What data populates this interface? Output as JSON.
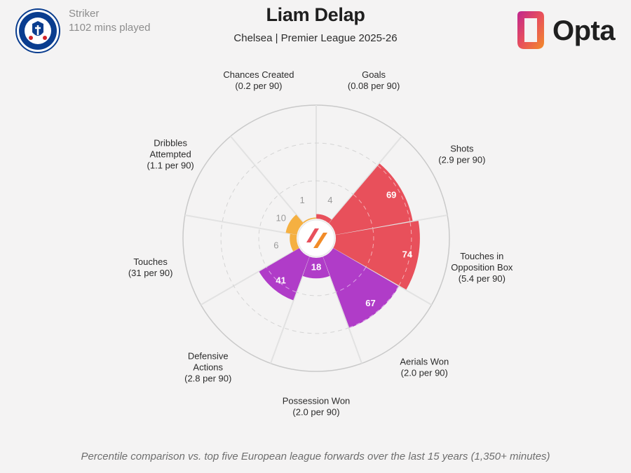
{
  "header": {
    "position": "Striker",
    "minutes": "1102 mins played",
    "title": "Liam Delap",
    "subtitle": "Chelsea | Premier League 2025-26",
    "brand": "Opta",
    "club_crest_text": "CHELSEA FOOTBALL CLUB"
  },
  "footnote": "Percentile comparison vs. top five European league forwards over the last 15 years (1,350+ minutes)",
  "colors": {
    "attacking": "#e8505b",
    "possession": "#f5b041",
    "defending": "#b03cc8",
    "ring": "#c9c9c9",
    "background": "#f4f3f3"
  },
  "chart_data": {
    "type": "polar-bar",
    "title": "Liam Delap",
    "subtitle": "Chelsea | Premier League 2025-26",
    "rlim": [
      0,
      100
    ],
    "categories": [
      {
        "name": "Goals",
        "per90": "(0.08 per 90)",
        "percentile": 4,
        "group": "attacking"
      },
      {
        "name": "Shots",
        "per90": "(2.9 per 90)",
        "percentile": 69,
        "group": "attacking"
      },
      {
        "name": "Touches in Opposition Box",
        "label_lines": [
          "Touches in",
          "Opposition Box"
        ],
        "per90": "(5.4 per 90)",
        "percentile": 74,
        "group": "attacking"
      },
      {
        "name": "Aerials Won",
        "per90": "(2.0 per 90)",
        "percentile": 67,
        "group": "defending"
      },
      {
        "name": "Possession Won",
        "per90": "(2.0 per 90)",
        "percentile": 18,
        "group": "defending"
      },
      {
        "name": "Defensive Actions",
        "label_lines": [
          "Defensive",
          "Actions"
        ],
        "per90": "(2.8 per 90)",
        "percentile": 41,
        "group": "defending"
      },
      {
        "name": "Touches",
        "per90": "(31 per 90)",
        "percentile": 6,
        "group": "possession"
      },
      {
        "name": "Dribbles Attempted",
        "label_lines": [
          "Dribbles",
          "Attempted"
        ],
        "per90": "(1.1 per 90)",
        "percentile": 10,
        "group": "possession"
      },
      {
        "name": "Chances Created",
        "per90": "(0.2 per 90)",
        "percentile": 1,
        "group": "possession"
      }
    ],
    "footnote": "Percentile comparison vs. top five European league forwards over the last 15 years (1,350+ minutes)"
  }
}
